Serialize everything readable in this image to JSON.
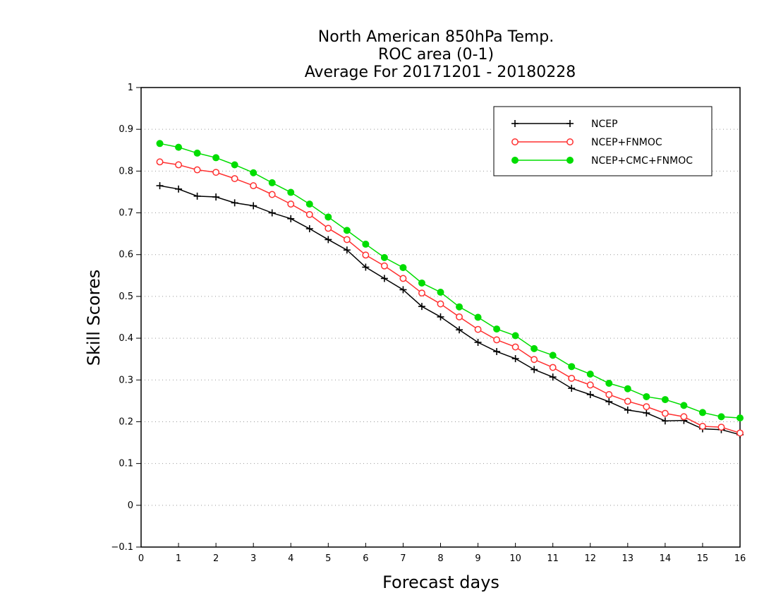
{
  "chart_data": {
    "type": "line",
    "title": [
      "North American 850hPa Temp.",
      "ROC area (0-1)",
      "Average For 20171201 - 20180228"
    ],
    "xlabel": "Forecast days",
    "ylabel": "Skill Scores",
    "xlim": [
      0,
      16
    ],
    "ylim": [
      -0.1,
      1
    ],
    "xticks": [
      "0",
      "1",
      "2",
      "3",
      "4",
      "5",
      "6",
      "7",
      "8",
      "9",
      "10",
      "11",
      "12",
      "13",
      "14",
      "15",
      "16"
    ],
    "yticks": [
      "−0.1",
      "0",
      "0.1",
      "0.2",
      "0.3",
      "0.4",
      "0.5",
      "0.6",
      "0.7",
      "0.8",
      "0.9",
      "1"
    ],
    "grid": "horizontal dotted",
    "legend_position": "top-right",
    "x": [
      0.5,
      1,
      1.5,
      2,
      2.5,
      3,
      3.5,
      4,
      4.5,
      5,
      5.5,
      6,
      6.5,
      7,
      7.5,
      8,
      8.5,
      9,
      9.5,
      10,
      10.5,
      11,
      11.5,
      12,
      12.5,
      13,
      13.5,
      14,
      14.5,
      15,
      15.5,
      16
    ],
    "series": [
      {
        "name": "NCEP",
        "color": "#000000",
        "marker": "plus",
        "values": [
          0.765,
          0.757,
          0.74,
          0.738,
          0.724,
          0.717,
          0.7,
          0.686,
          0.662,
          0.636,
          0.611,
          0.57,
          0.543,
          0.516,
          0.476,
          0.451,
          0.42,
          0.39,
          0.368,
          0.351,
          0.325,
          0.307,
          0.28,
          0.265,
          0.248,
          0.228,
          0.221,
          0.202,
          0.203,
          0.183,
          0.181,
          0.169
        ]
      },
      {
        "name": "NCEP+FNMOC",
        "color": "#ff3030",
        "marker": "open-circle",
        "values": [
          0.822,
          0.815,
          0.803,
          0.797,
          0.782,
          0.765,
          0.744,
          0.721,
          0.696,
          0.663,
          0.636,
          0.599,
          0.573,
          0.543,
          0.508,
          0.482,
          0.451,
          0.421,
          0.396,
          0.379,
          0.349,
          0.33,
          0.304,
          0.288,
          0.265,
          0.249,
          0.236,
          0.22,
          0.212,
          0.189,
          0.187,
          0.173
        ]
      },
      {
        "name": "NCEP+CMC+FNMOC",
        "color": "#00dd00",
        "marker": "filled-circle",
        "values": [
          0.866,
          0.857,
          0.843,
          0.832,
          0.815,
          0.796,
          0.772,
          0.749,
          0.721,
          0.69,
          0.658,
          0.625,
          0.593,
          0.569,
          0.532,
          0.51,
          0.475,
          0.45,
          0.422,
          0.406,
          0.375,
          0.359,
          0.332,
          0.314,
          0.292,
          0.279,
          0.26,
          0.253,
          0.239,
          0.222,
          0.212,
          0.209
        ]
      }
    ]
  }
}
